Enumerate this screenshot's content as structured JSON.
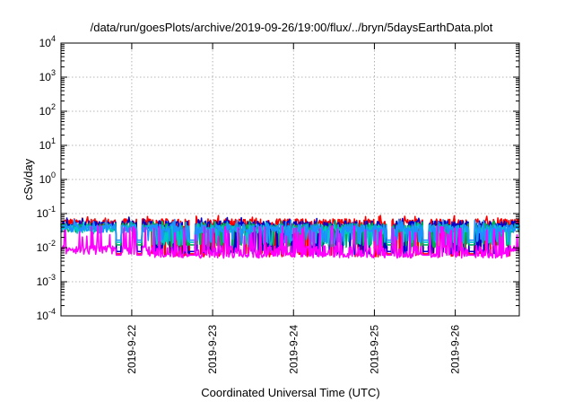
{
  "chart_data": {
    "type": "line",
    "title": "/data/run/goesPlots/archive/2019-09-26/19:00/flux/../bryn/5daysEarthData.plot",
    "xlabel": "Coordinated Universal Time (UTC)",
    "ylabel": "cSv/day",
    "yscale": "log",
    "ylim": [
      0.0001,
      10000
    ],
    "y_ticks": [
      {
        "base": "10",
        "exp": "-4",
        "value": 0.0001
      },
      {
        "base": "10",
        "exp": "-3",
        "value": 0.001
      },
      {
        "base": "10",
        "exp": "-2",
        "value": 0.01
      },
      {
        "base": "10",
        "exp": "-1",
        "value": 0.1
      },
      {
        "base": "10",
        "exp": "0",
        "value": 1
      },
      {
        "base": "10",
        "exp": "1",
        "value": 10
      },
      {
        "base": "10",
        "exp": "2",
        "value": 100
      },
      {
        "base": "10",
        "exp": "3",
        "value": 1000
      },
      {
        "base": "10",
        "exp": "4",
        "value": 10000
      }
    ],
    "xlim": [
      "2019-09-21 03:00",
      "2019-09-26 19:00"
    ],
    "x_ticks": [
      {
        "label": "2019-9-22",
        "value": "2019-09-22 00:00"
      },
      {
        "label": "2019-9-23",
        "value": "2019-09-23 00:00"
      },
      {
        "label": "2019-9-24",
        "value": "2019-09-24 00:00"
      },
      {
        "label": "2019-9-25",
        "value": "2019-09-25 00:00"
      },
      {
        "label": "2019-9-26",
        "value": "2019-09-26 00:00"
      }
    ],
    "grid": true,
    "legend": "none",
    "series": [
      {
        "color": "#ff0000",
        "base": 0.052,
        "min": 0.035,
        "max": 0.085,
        "dip_to": 0.006
      },
      {
        "color": "#0000cc",
        "base": 0.045,
        "min": 0.03,
        "max": 0.075,
        "dip_to": 0.007
      },
      {
        "color": "#00b050",
        "base": 0.038,
        "min": 0.025,
        "max": 0.06,
        "dip_to": 0.011
      },
      {
        "color": "#00c8c8",
        "base": 0.034,
        "min": 0.022,
        "max": 0.055,
        "dip_to": 0.013
      },
      {
        "color": "#1e90ff",
        "base": 0.036,
        "min": 0.022,
        "max": 0.065,
        "dip_to": 0.015
      },
      {
        "color": "#ff00ff",
        "base": 0.0085,
        "min": 0.0055,
        "max": 0.04,
        "dip_to": 0.0055
      }
    ]
  }
}
